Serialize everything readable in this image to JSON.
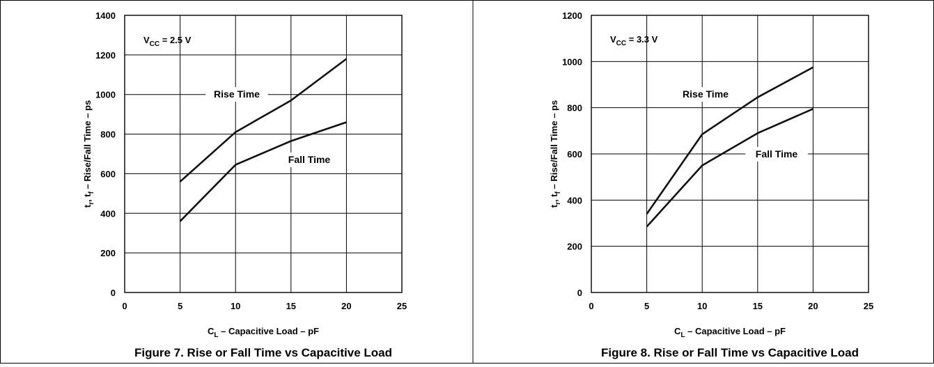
{
  "chart_data": [
    {
      "type": "line",
      "caption": "Figure 7. Rise or Fall Time vs Capacitive Load",
      "annotation": {
        "main": "V",
        "sub": "CC",
        "rest": " = 2.5 V"
      },
      "xlabel": {
        "main": "C",
        "sub": "L",
        "rest": " – Capacitive Load – pF"
      },
      "ylabel": {
        "p1": "t",
        "s1": "r",
        "p2": ", t",
        "s2": "f",
        "p3": " – Rise/Fall Time – ps"
      },
      "xlim": [
        0,
        25
      ],
      "ylim": [
        0,
        1400
      ],
      "xticks": [
        "0",
        "5",
        "10",
        "15",
        "20",
        "25"
      ],
      "yticks": [
        "0",
        "200",
        "400",
        "600",
        "800",
        "1000",
        "1200",
        "1400"
      ],
      "grid": true,
      "series": [
        {
          "name": "Rise Time",
          "x": [
            5,
            10,
            15,
            20
          ],
          "y": [
            560,
            810,
            970,
            1180
          ]
        },
        {
          "name": "Fall Time",
          "x": [
            5,
            10,
            15,
            20
          ],
          "y": [
            360,
            645,
            765,
            860
          ]
        }
      ]
    },
    {
      "type": "line",
      "caption": "Figure 8. Rise or Fall Time vs Capacitive Load",
      "annotation": {
        "main": "V",
        "sub": "CC",
        "rest": " = 3.3 V"
      },
      "xlabel": {
        "main": "C",
        "sub": "L",
        "rest": " – Capacitive Load – pF"
      },
      "ylabel": {
        "p1": "t",
        "s1": "r",
        "p2": ", t",
        "s2": "f",
        "p3": " – Rise/Fall Time – ps"
      },
      "xlim": [
        0,
        25
      ],
      "ylim": [
        0,
        1200
      ],
      "xticks": [
        "0",
        "5",
        "10",
        "15",
        "20",
        "25"
      ],
      "yticks": [
        "0",
        "200",
        "400",
        "600",
        "800",
        "1000",
        "1200"
      ],
      "grid": true,
      "series": [
        {
          "name": "Rise Time",
          "x": [
            5,
            10,
            15,
            20
          ],
          "y": [
            340,
            685,
            845,
            975
          ]
        },
        {
          "name": "Fall Time",
          "x": [
            5,
            10,
            15,
            20
          ],
          "y": [
            285,
            550,
            690,
            795
          ]
        }
      ]
    }
  ]
}
